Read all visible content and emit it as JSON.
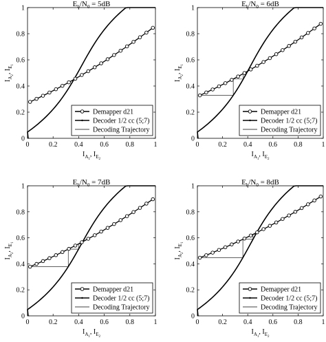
{
  "chart_data": [
    {
      "type": "line",
      "title": "E_b/N_0 = 5dB",
      "title_parts": {
        "main": "E",
        "sub1": "b",
        "mid": "/N",
        "sub2": "0",
        "rest": " = 5dB"
      },
      "xlabel_parts": {
        "a": "I",
        "a_sub": "A",
        "a_sub2": "1",
        "sep": ", ",
        "b": "I",
        "b_sub": "E",
        "b_sub2": "2"
      },
      "ylabel_parts": {
        "a": "I",
        "a_sub": "A",
        "a_sub2": "2",
        "sep": ", ",
        "b": "I",
        "b_sub": "E",
        "b_sub2": "1"
      },
      "xlim": [
        0,
        1
      ],
      "ylim": [
        0,
        1
      ],
      "xticks": [
        "0",
        "0.2",
        "0.4",
        "0.6",
        "0.8",
        "1"
      ],
      "yticks": [
        "0",
        "0.2",
        "0.4",
        "0.6",
        "0.8",
        "1"
      ],
      "legend_position": "bottom-right",
      "series": [
        {
          "name": "Demapper d21",
          "kind": "demapper",
          "a": 0.27,
          "b": 0.6
        },
        {
          "name": "Decoder 1/2 cc (5;7)",
          "kind": "decoder"
        },
        {
          "name": "Decoding Trajectory",
          "kind": "trajectory"
        }
      ]
    },
    {
      "type": "line",
      "title": "E_b/N_0 = 6dB",
      "title_parts": {
        "main": "E",
        "sub1": "b",
        "mid": "/N",
        "sub2": "0",
        "rest": " = 6dB"
      },
      "xlabel_parts": {
        "a": "I",
        "a_sub": "A",
        "a_sub2": "1",
        "sep": ", ",
        "b": "I",
        "b_sub": "E",
        "b_sub2": "2"
      },
      "ylabel_parts": {
        "a": "I",
        "a_sub": "A",
        "a_sub2": "2",
        "sep": ", ",
        "b": "I",
        "b_sub": "E",
        "b_sub2": "1"
      },
      "xlim": [
        0,
        1
      ],
      "ylim": [
        0,
        1
      ],
      "xticks": [
        "0",
        "0.2",
        "0.4",
        "0.6",
        "0.8",
        "1"
      ],
      "yticks": [
        "0",
        "0.2",
        "0.4",
        "0.6",
        "0.8",
        "1"
      ],
      "legend_position": "bottom-right",
      "series": [
        {
          "name": "Demapper d21",
          "kind": "demapper",
          "a": 0.32,
          "b": 0.58
        },
        {
          "name": "Decoder 1/2 cc (5;7)",
          "kind": "decoder"
        },
        {
          "name": "Decoding Trajectory",
          "kind": "trajectory"
        }
      ]
    },
    {
      "type": "line",
      "title": "E_b/N_0 = 7dB",
      "title_parts": {
        "main": "E",
        "sub1": "b",
        "mid": "/N",
        "sub2": "0",
        "rest": " = 7dB"
      },
      "xlabel_parts": {
        "a": "I",
        "a_sub": "A",
        "a_sub2": "1",
        "sep": ", ",
        "b": "I",
        "b_sub": "E",
        "b_sub2": "2"
      },
      "ylabel_parts": {
        "a": "I",
        "a_sub": "A",
        "a_sub2": "2",
        "sep": ", ",
        "b": "I",
        "b_sub": "E",
        "b_sub2": "1"
      },
      "xlim": [
        0,
        1
      ],
      "ylim": [
        0,
        1
      ],
      "xticks": [
        "0",
        "0.2",
        "0.4",
        "0.6",
        "0.8",
        "1"
      ],
      "yticks": [
        "0",
        "0.2",
        "0.4",
        "0.6",
        "0.8",
        "1"
      ],
      "legend_position": "bottom-right",
      "series": [
        {
          "name": "Demapper d21",
          "kind": "demapper",
          "a": 0.37,
          "b": 0.55
        },
        {
          "name": "Decoder 1/2 cc (5;7)",
          "kind": "decoder"
        },
        {
          "name": "Decoding Trajectory",
          "kind": "trajectory"
        }
      ]
    },
    {
      "type": "line",
      "title": "E_b/N_0 = 8dB",
      "title_parts": {
        "main": "E",
        "sub1": "b",
        "mid": "/N",
        "sub2": "0",
        "rest": " = 8dB"
      },
      "xlabel_parts": {
        "a": "I",
        "a_sub": "A",
        "a_sub2": "1",
        "sep": ", ",
        "b": "I",
        "b_sub": "E",
        "b_sub2": "2"
      },
      "ylabel_parts": {
        "a": "I",
        "a_sub": "A",
        "a_sub2": "2",
        "sep": ", ",
        "b": "I",
        "b_sub": "E",
        "b_sub2": "1"
      },
      "xlim": [
        0,
        1
      ],
      "ylim": [
        0,
        1
      ],
      "xticks": [
        "0",
        "0.2",
        "0.4",
        "0.6",
        "0.8",
        "1"
      ],
      "yticks": [
        "0",
        "0.2",
        "0.4",
        "0.6",
        "0.8",
        "1"
      ],
      "legend_position": "bottom-right",
      "series": [
        {
          "name": "Demapper d21",
          "kind": "demapper",
          "a": 0.44,
          "b": 0.5
        },
        {
          "name": "Decoder 1/2 cc (5;7)",
          "kind": "decoder"
        },
        {
          "name": "Decoding Trajectory",
          "kind": "trajectory"
        }
      ]
    }
  ]
}
